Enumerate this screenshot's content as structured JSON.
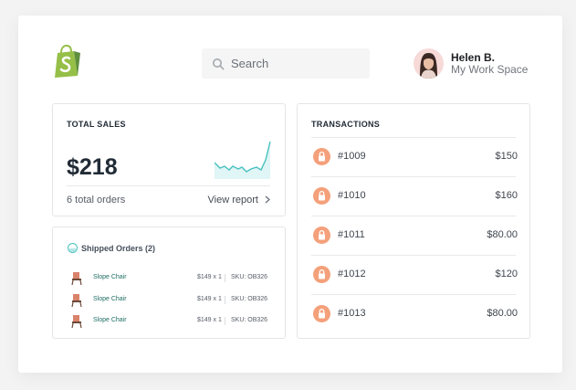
{
  "header": {
    "logo_icon": "shopify-bag-icon",
    "search": {
      "placeholder": "Search"
    },
    "user": {
      "name": "Helen B.",
      "workspace": "My Work Space"
    }
  },
  "total_sales": {
    "title": "TOTAL SALES",
    "amount": "$218",
    "orders": "6 total orders",
    "link": "View report",
    "trend_color": "#47c1bf"
  },
  "shipped": {
    "title": "Shipped Orders (2)",
    "rows": [
      {
        "name": "Slope Chair",
        "qty": "$149 x 1",
        "sku": "SKU: OB326"
      },
      {
        "name": "Slope Chair",
        "qty": "$149 x 1",
        "sku": "SKU: OB326"
      },
      {
        "name": "Slope Chair",
        "qty": "$149 x 1",
        "sku": "SKU: OB326"
      }
    ]
  },
  "transactions": {
    "title": "TRANSACTIONS",
    "badge_color": "#f4a07a",
    "rows": [
      {
        "id": "#1009",
        "amount": "$150"
      },
      {
        "id": "#1010",
        "amount": "$160"
      },
      {
        "id": "#1011",
        "amount": "$80.00"
      },
      {
        "id": "#1012",
        "amount": "$120"
      },
      {
        "id": "#1013",
        "amount": "$80.00"
      }
    ]
  },
  "colors": {
    "brand_green": "#95bf47",
    "accent_teal": "#47c1bf",
    "lock_orange": "#f4a07a"
  }
}
